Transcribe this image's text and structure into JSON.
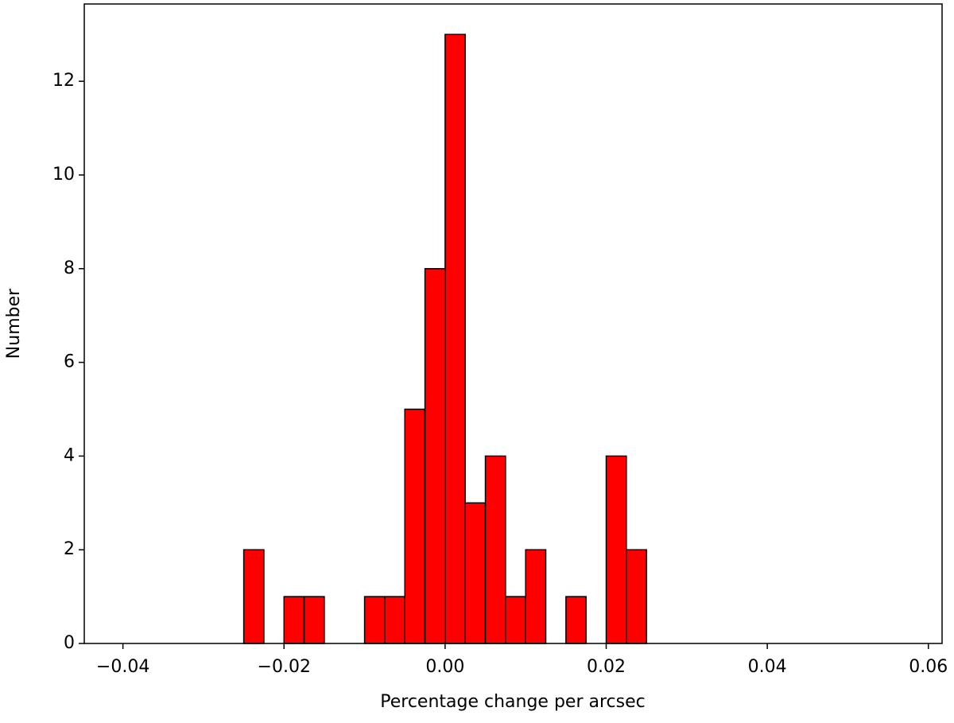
{
  "chart_data": {
    "type": "histogram",
    "xlabel": "Percentage change per arcsec",
    "ylabel": "Number",
    "bins": [
      -0.04,
      -0.0375,
      -0.035,
      -0.0325,
      -0.03,
      -0.0275,
      -0.025,
      -0.0225,
      -0.02,
      -0.0175,
      -0.015,
      -0.0125,
      -0.01,
      -0.0075,
      -0.005,
      -0.0025,
      0,
      0.0025,
      0.005,
      0.0075,
      0.01,
      0.0125,
      0.015,
      0.0175,
      0.02,
      0.0225,
      0.025,
      0.0275,
      0.03,
      0.0325,
      0.035,
      0.0375,
      0.04,
      0.0425,
      0.045,
      0.0475,
      0.05,
      0.0525,
      0.055,
      0.0575
    ],
    "counts": [
      0,
      0,
      0,
      0,
      0,
      0,
      2,
      0,
      1,
      1,
      0,
      0,
      1,
      1,
      5,
      8,
      13,
      3,
      4,
      1,
      2,
      0,
      1,
      0,
      4,
      2,
      0,
      0,
      0,
      0,
      0,
      0,
      0,
      0,
      0,
      0,
      0,
      0,
      0
    ],
    "color": "#ff0000",
    "edgecolor": "#000000",
    "xlim": [
      -0.0448,
      0.0617
    ],
    "ylim": [
      0,
      13.65
    ],
    "xticks": [
      {
        "value": -0.04,
        "label": "−0.04"
      },
      {
        "value": -0.02,
        "label": "−0.02"
      },
      {
        "value": 0,
        "label": "0.00"
      },
      0.02,
      0.04,
      0.06
    ],
    "yticks": [
      0,
      2,
      4,
      6,
      8,
      10,
      12
    ]
  }
}
